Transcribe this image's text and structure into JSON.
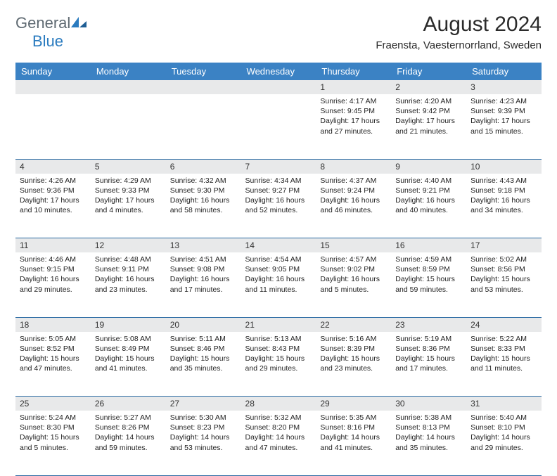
{
  "brand": {
    "general": "General",
    "blue": "Blue"
  },
  "colors": {
    "header_bg": "#3b82c4",
    "header_fg": "#ffffff",
    "grid_line": "#2a6aa3",
    "daynum_bg": "#e8e9ea",
    "logo_gray": "#5f6a72",
    "logo_blue": "#2a7bbf",
    "text": "#222222",
    "background": "#ffffff"
  },
  "title": "August 2024",
  "location": "Fraensta, Vaesternorrland, Sweden",
  "day_headers": [
    "Sunday",
    "Monday",
    "Tuesday",
    "Wednesday",
    "Thursday",
    "Friday",
    "Saturday"
  ],
  "weeks": [
    [
      null,
      null,
      null,
      null,
      {
        "n": "1",
        "sr": "4:17 AM",
        "ss": "9:45 PM",
        "dl": "17 hours and 27 minutes."
      },
      {
        "n": "2",
        "sr": "4:20 AM",
        "ss": "9:42 PM",
        "dl": "17 hours and 21 minutes."
      },
      {
        "n": "3",
        "sr": "4:23 AM",
        "ss": "9:39 PM",
        "dl": "17 hours and 15 minutes."
      }
    ],
    [
      {
        "n": "4",
        "sr": "4:26 AM",
        "ss": "9:36 PM",
        "dl": "17 hours and 10 minutes."
      },
      {
        "n": "5",
        "sr": "4:29 AM",
        "ss": "9:33 PM",
        "dl": "17 hours and 4 minutes."
      },
      {
        "n": "6",
        "sr": "4:32 AM",
        "ss": "9:30 PM",
        "dl": "16 hours and 58 minutes."
      },
      {
        "n": "7",
        "sr": "4:34 AM",
        "ss": "9:27 PM",
        "dl": "16 hours and 52 minutes."
      },
      {
        "n": "8",
        "sr": "4:37 AM",
        "ss": "9:24 PM",
        "dl": "16 hours and 46 minutes."
      },
      {
        "n": "9",
        "sr": "4:40 AM",
        "ss": "9:21 PM",
        "dl": "16 hours and 40 minutes."
      },
      {
        "n": "10",
        "sr": "4:43 AM",
        "ss": "9:18 PM",
        "dl": "16 hours and 34 minutes."
      }
    ],
    [
      {
        "n": "11",
        "sr": "4:46 AM",
        "ss": "9:15 PM",
        "dl": "16 hours and 29 minutes."
      },
      {
        "n": "12",
        "sr": "4:48 AM",
        "ss": "9:11 PM",
        "dl": "16 hours and 23 minutes."
      },
      {
        "n": "13",
        "sr": "4:51 AM",
        "ss": "9:08 PM",
        "dl": "16 hours and 17 minutes."
      },
      {
        "n": "14",
        "sr": "4:54 AM",
        "ss": "9:05 PM",
        "dl": "16 hours and 11 minutes."
      },
      {
        "n": "15",
        "sr": "4:57 AM",
        "ss": "9:02 PM",
        "dl": "16 hours and 5 minutes."
      },
      {
        "n": "16",
        "sr": "4:59 AM",
        "ss": "8:59 PM",
        "dl": "15 hours and 59 minutes."
      },
      {
        "n": "17",
        "sr": "5:02 AM",
        "ss": "8:56 PM",
        "dl": "15 hours and 53 minutes."
      }
    ],
    [
      {
        "n": "18",
        "sr": "5:05 AM",
        "ss": "8:52 PM",
        "dl": "15 hours and 47 minutes."
      },
      {
        "n": "19",
        "sr": "5:08 AM",
        "ss": "8:49 PM",
        "dl": "15 hours and 41 minutes."
      },
      {
        "n": "20",
        "sr": "5:11 AM",
        "ss": "8:46 PM",
        "dl": "15 hours and 35 minutes."
      },
      {
        "n": "21",
        "sr": "5:13 AM",
        "ss": "8:43 PM",
        "dl": "15 hours and 29 minutes."
      },
      {
        "n": "22",
        "sr": "5:16 AM",
        "ss": "8:39 PM",
        "dl": "15 hours and 23 minutes."
      },
      {
        "n": "23",
        "sr": "5:19 AM",
        "ss": "8:36 PM",
        "dl": "15 hours and 17 minutes."
      },
      {
        "n": "24",
        "sr": "5:22 AM",
        "ss": "8:33 PM",
        "dl": "15 hours and 11 minutes."
      }
    ],
    [
      {
        "n": "25",
        "sr": "5:24 AM",
        "ss": "8:30 PM",
        "dl": "15 hours and 5 minutes."
      },
      {
        "n": "26",
        "sr": "5:27 AM",
        "ss": "8:26 PM",
        "dl": "14 hours and 59 minutes."
      },
      {
        "n": "27",
        "sr": "5:30 AM",
        "ss": "8:23 PM",
        "dl": "14 hours and 53 minutes."
      },
      {
        "n": "28",
        "sr": "5:32 AM",
        "ss": "8:20 PM",
        "dl": "14 hours and 47 minutes."
      },
      {
        "n": "29",
        "sr": "5:35 AM",
        "ss": "8:16 PM",
        "dl": "14 hours and 41 minutes."
      },
      {
        "n": "30",
        "sr": "5:38 AM",
        "ss": "8:13 PM",
        "dl": "14 hours and 35 minutes."
      },
      {
        "n": "31",
        "sr": "5:40 AM",
        "ss": "8:10 PM",
        "dl": "14 hours and 29 minutes."
      }
    ]
  ],
  "labels": {
    "sunrise": "Sunrise: ",
    "sunset": "Sunset: ",
    "daylight": "Daylight: "
  }
}
